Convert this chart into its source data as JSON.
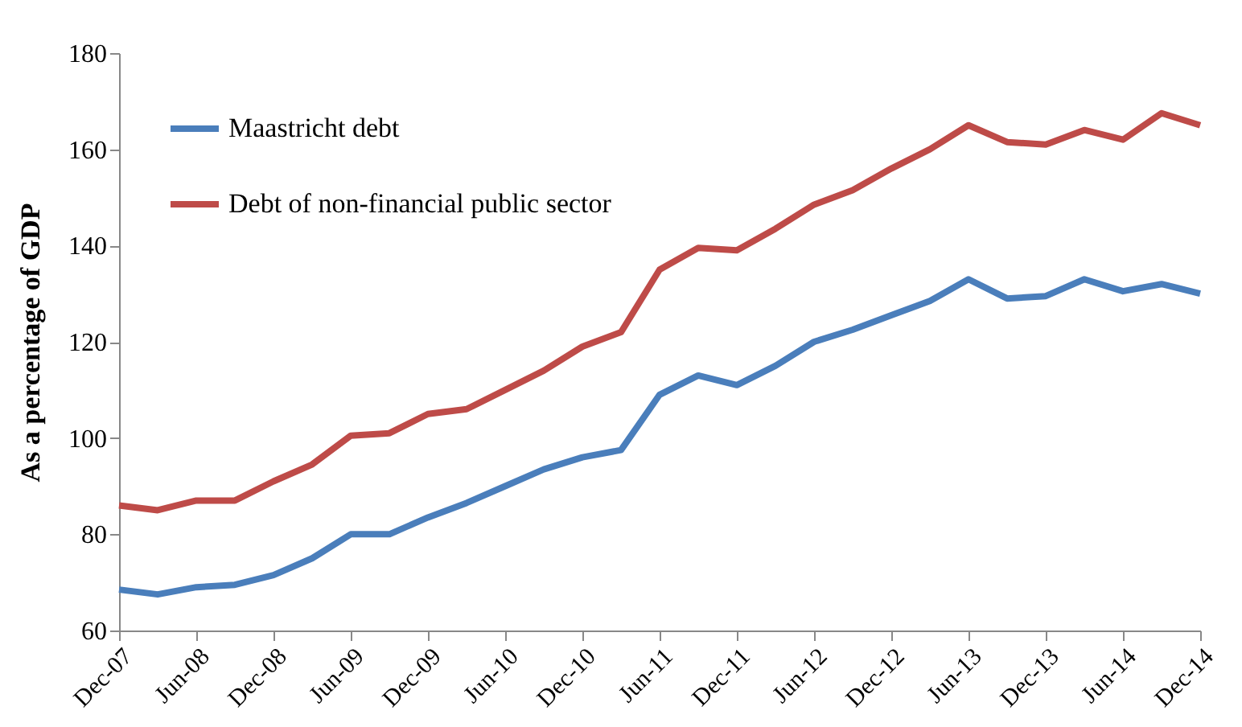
{
  "chart_data": {
    "type": "line",
    "ylabel": "As a percentage of GDP",
    "categories": [
      "Dec-07",
      null,
      "Jun-08",
      null,
      "Dec-08",
      null,
      "Jun-09",
      null,
      "Dec-09",
      null,
      "Jun-10",
      null,
      "Dec-10",
      null,
      "Jun-11",
      null,
      "Dec-11",
      null,
      "Jun-12",
      null,
      "Dec-12",
      null,
      "Jun-13",
      null,
      "Dec-13",
      null,
      "Jun-14",
      null,
      "Dec-14"
    ],
    "series": [
      {
        "name": "Maastricht debt",
        "color": "#4a7ebb",
        "values": [
          68.5,
          67.5,
          69,
          69.5,
          71.5,
          75,
          80,
          80,
          83.5,
          86.5,
          90,
          93.5,
          96,
          97.5,
          109,
          113,
          111,
          115,
          120,
          122.5,
          125.5,
          128.5,
          133,
          129,
          129.5,
          133,
          130.5,
          132,
          130
        ]
      },
      {
        "name": "Debt of non-financial public sector",
        "color": "#be4b48",
        "values": [
          86,
          85,
          87,
          87,
          91,
          94.5,
          100.5,
          101,
          105,
          106,
          110,
          114,
          119,
          122,
          135,
          139.5,
          139,
          143.5,
          148.5,
          151.5,
          156,
          160,
          165,
          161.5,
          161,
          164,
          162,
          167.5,
          165
        ]
      }
    ],
    "ylim": [
      60,
      180
    ],
    "yticks": [
      60,
      80,
      100,
      120,
      140,
      160,
      180
    ],
    "grid": false,
    "legend": "top left",
    "marker": "none",
    "line_style": "solid"
  }
}
